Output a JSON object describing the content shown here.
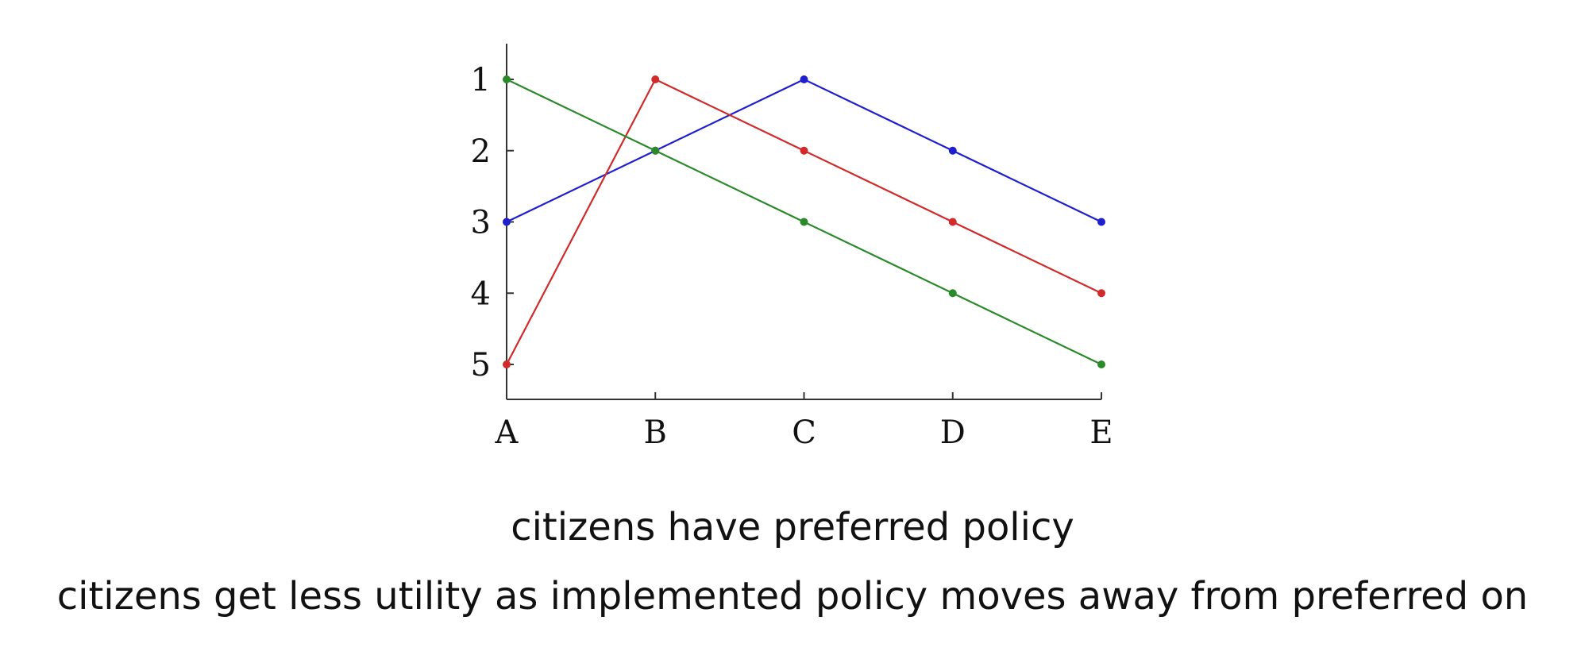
{
  "chart_data": {
    "type": "line",
    "categories": [
      "A",
      "B",
      "C",
      "D",
      "E"
    ],
    "y_ticks": [
      "1",
      "2",
      "3",
      "4",
      "5"
    ],
    "ylim": [
      1,
      5
    ],
    "y_axis_inverted": true,
    "grid": false,
    "legend": "none",
    "series": [
      {
        "color": "#1f1fd0",
        "values": [
          3,
          2,
          1,
          2,
          3
        ]
      },
      {
        "color": "#d02a2a",
        "values": [
          5,
          1,
          2,
          3,
          4
        ]
      },
      {
        "color": "#2a8a2a",
        "values": [
          1,
          2,
          3,
          4,
          5
        ]
      }
    ]
  },
  "captions": {
    "line1": "citizens have preferred policy",
    "line2": "citizens get less utility as implemented policy moves away from preferred on"
  }
}
